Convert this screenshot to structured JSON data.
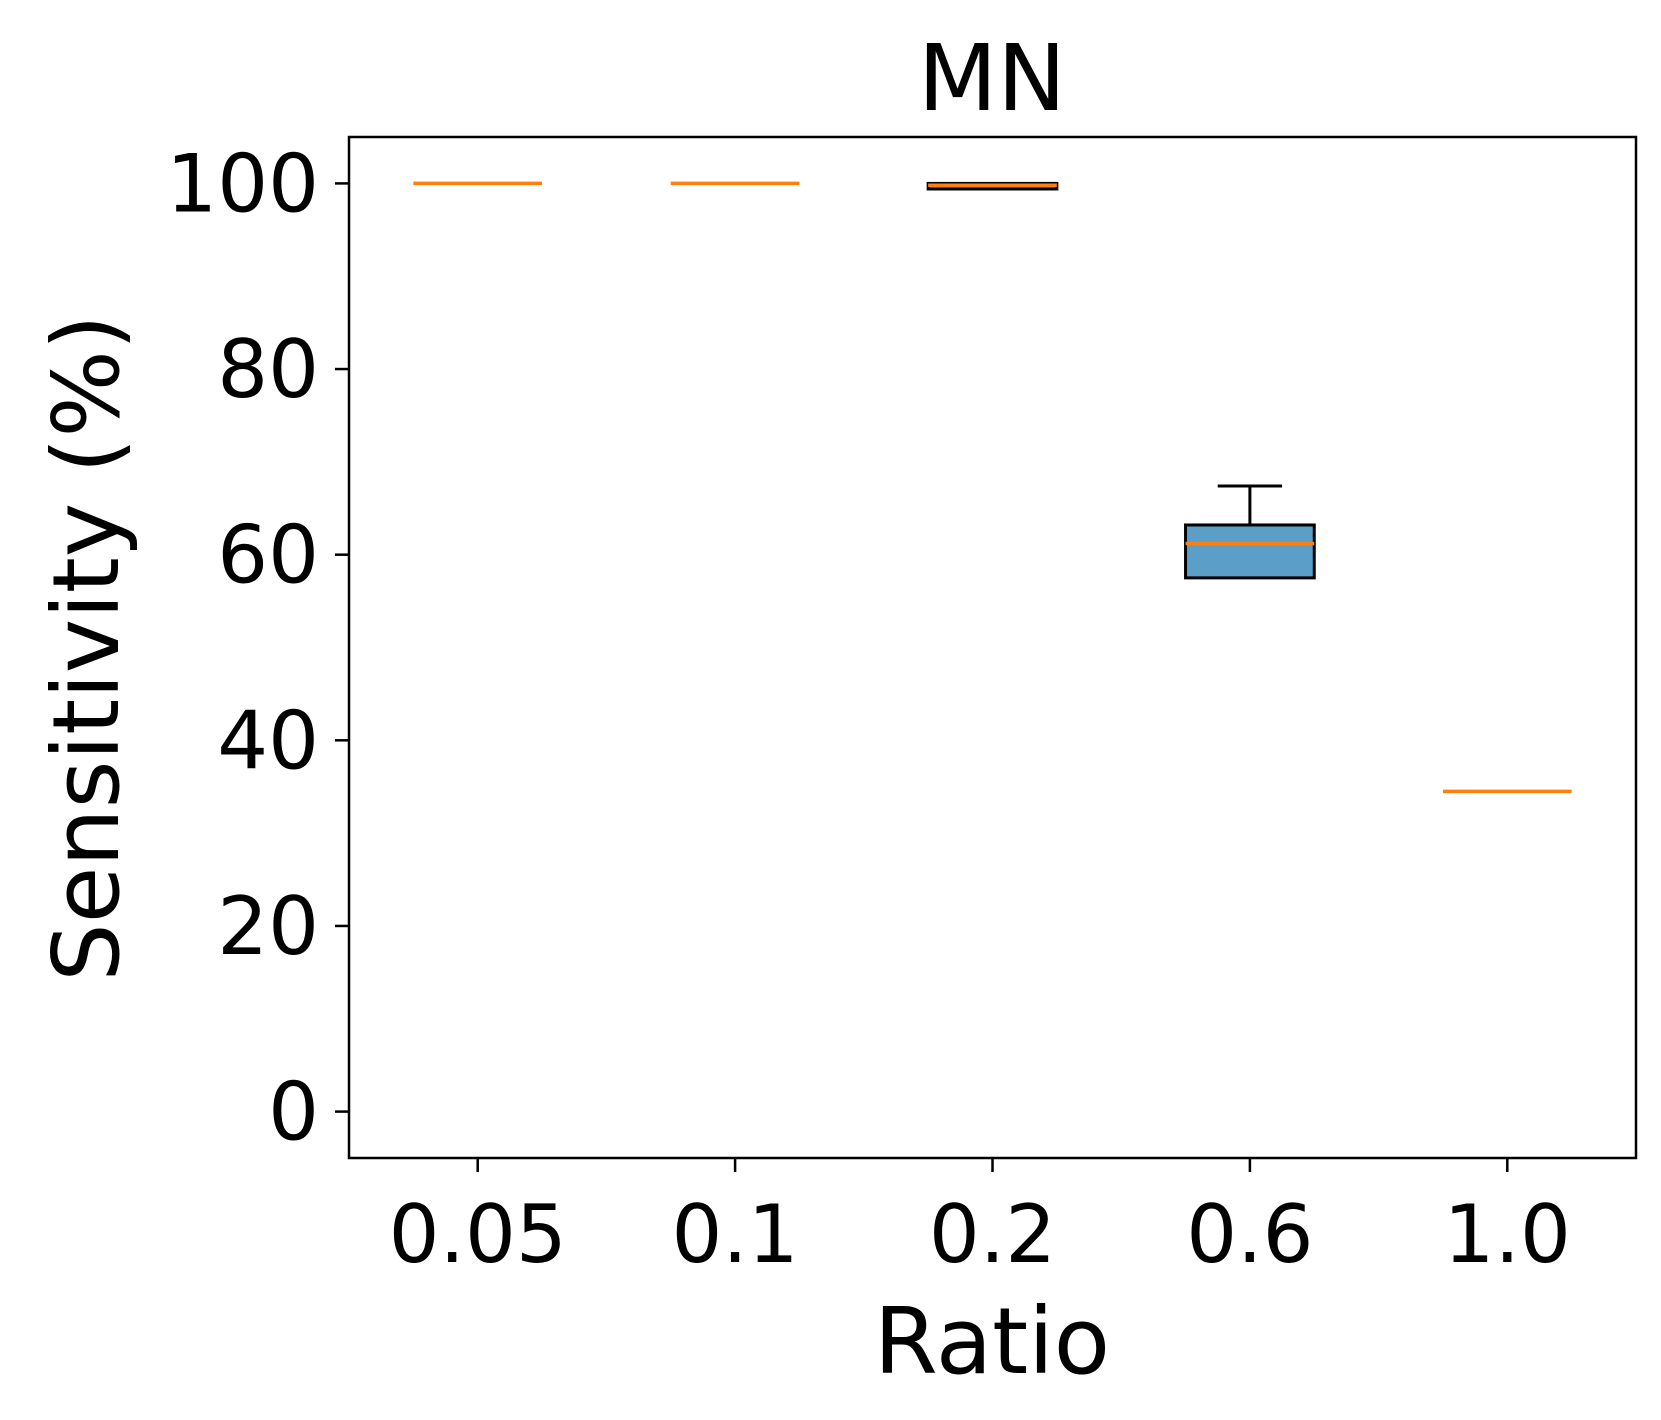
{
  "chart_data": {
    "type": "box",
    "title": "MN",
    "xlabel": "Ratio",
    "ylabel": "Sensitivity (%)",
    "categories": [
      "0.05",
      "0.1",
      "0.2",
      "0.6",
      "1.0"
    ],
    "ylim": [
      -5,
      105
    ],
    "yticks": [
      0,
      20,
      40,
      60,
      80,
      100
    ],
    "grid": false,
    "boxes": [
      {
        "category": "0.05",
        "whisker_low": 100.0,
        "q1": 100.0,
        "median": 100.0,
        "q3": 100.0,
        "whisker_high": 100.0
      },
      {
        "category": "0.1",
        "whisker_low": 100.0,
        "q1": 100.0,
        "median": 100.0,
        "q3": 100.0,
        "whisker_high": 100.0
      },
      {
        "category": "0.2",
        "whisker_low": 99.4,
        "q1": 99.4,
        "median": 99.8,
        "q3": 100.0,
        "whisker_high": 100.0
      },
      {
        "category": "0.6",
        "whisker_low": 57.5,
        "q1": 57.5,
        "median": 61.2,
        "q3": 63.2,
        "whisker_high": 67.4
      },
      {
        "category": "1.0",
        "whisker_low": 34.5,
        "q1": 34.5,
        "median": 34.5,
        "q3": 34.5,
        "whisker_high": 34.5
      }
    ],
    "colors": {
      "box_fill": "#5b9fc9",
      "median": "#ff7f0e",
      "edge": "#000000"
    }
  }
}
